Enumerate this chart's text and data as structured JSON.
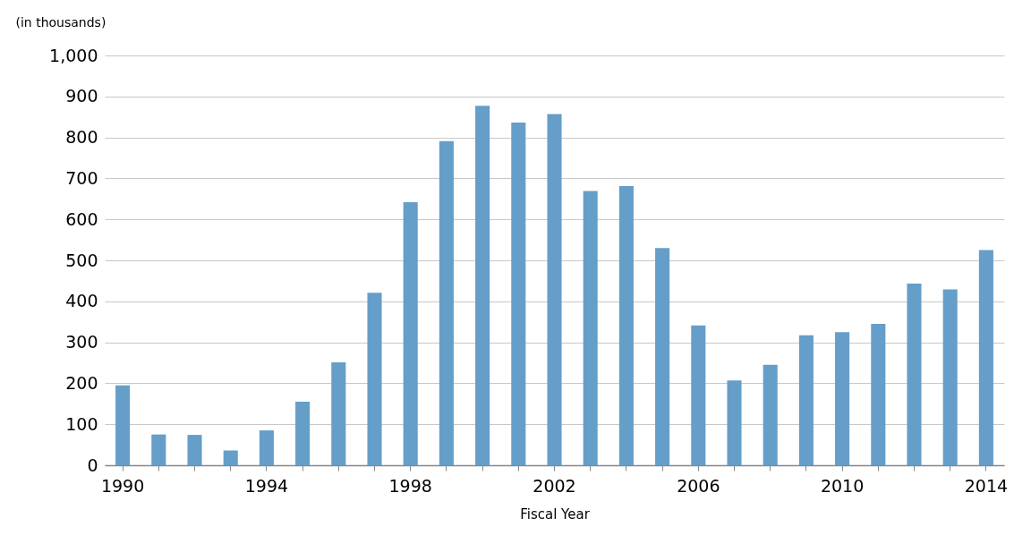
{
  "chart_data": {
    "type": "bar",
    "ylabel": "(in thousands)",
    "xlabel": "Fiscal Year",
    "categories": [
      "1990",
      null,
      null,
      null,
      "1994",
      null,
      null,
      null,
      "1998",
      null,
      null,
      null,
      "2002",
      null,
      null,
      null,
      "2006",
      null,
      null,
      null,
      "2010",
      null,
      null,
      null,
      "2014"
    ],
    "values": [
      195,
      75,
      74,
      36,
      85,
      155,
      251,
      421,
      642,
      791,
      877,
      836,
      857,
      669,
      681,
      530,
      341,
      207,
      245,
      317,
      325,
      345,
      443,
      429,
      525
    ],
    "color": "#659ec8",
    "ylim": [
      0,
      1000
    ],
    "yticks": [
      0,
      100,
      200,
      300,
      400,
      500,
      600,
      700,
      800,
      900,
      {
        "value": 1000,
        "label": "1,000"
      }
    ],
    "grid": "y"
  }
}
